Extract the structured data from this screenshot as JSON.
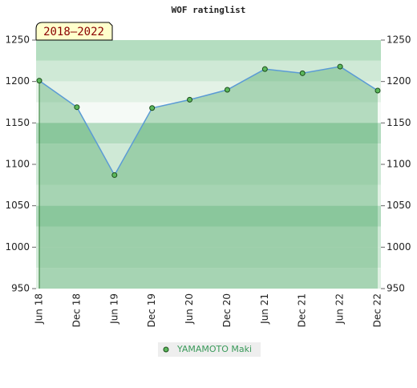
{
  "chart_data": {
    "type": "area",
    "title": "WOF ratinglist",
    "badge": "2018–2022",
    "categories": [
      "Jun 18",
      "Dec 18",
      "Jun 19",
      "Dec 19",
      "Jun 20",
      "Dec 20",
      "Jun 21",
      "Dec 21",
      "Jun 22",
      "Dec 22"
    ],
    "series": [
      {
        "name": "YAMAMOTO Maki",
        "color": "#5cb85c",
        "line_color": "#5b9bd5",
        "values": [
          1201,
          1169,
          1087,
          1168,
          1178,
          1190,
          1215,
          1210,
          1218,
          1189
        ]
      }
    ],
    "ylim": [
      950,
      1250
    ],
    "yticks": [
      950,
      1000,
      1050,
      1100,
      1150,
      1200,
      1250
    ],
    "y2lim": [
      950,
      1250
    ],
    "y2ticks": [
      950,
      1000,
      1050,
      1100,
      1150,
      1200,
      1250
    ]
  }
}
